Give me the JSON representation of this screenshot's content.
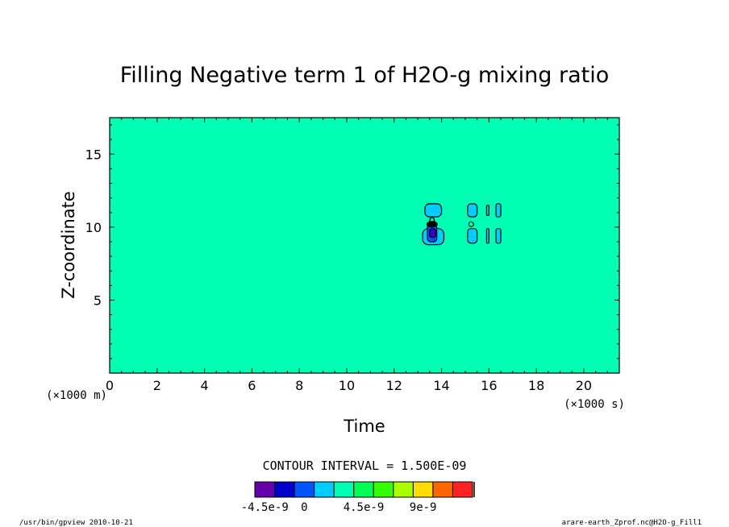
{
  "chart_data": {
    "type": "contour",
    "title": "Filling Negative term 1 of H2O-g mixing ratio",
    "xlabel": "Time",
    "ylabel": "Z-coordinate",
    "x_unit": "(×1000 s)",
    "y_unit": "(×1000 m)",
    "xlim": [
      0,
      21.5
    ],
    "ylim": [
      0,
      17.5
    ],
    "x_ticks": [
      "0",
      "2",
      "4",
      "6",
      "8",
      "10",
      "12",
      "14",
      "16",
      "18",
      "20"
    ],
    "x_tick_values": [
      0,
      2,
      4,
      6,
      8,
      10,
      12,
      14,
      16,
      18,
      20
    ],
    "y_ticks": [
      "5",
      "10",
      "15"
    ],
    "y_tick_values": [
      5,
      10,
      15
    ],
    "background_level_color": "#00ffb4",
    "features": [
      {
        "name": "upper-left-cell",
        "x": [
          13.3,
          14.0
        ],
        "y": [
          10.7,
          11.6
        ],
        "fill": "#00ccff"
      },
      {
        "name": "lower-left-cell",
        "x": [
          13.2,
          14.1
        ],
        "y": [
          8.8,
          9.9
        ],
        "fill": "#00ccff"
      },
      {
        "name": "core-low",
        "x": [
          13.4,
          13.8
        ],
        "y": [
          9.0,
          10.2
        ],
        "fill": "#0055ff"
      },
      {
        "name": "core-min",
        "x": [
          13.5,
          13.75
        ],
        "y": [
          9.3,
          9.9
        ],
        "fill": "#3300cc"
      },
      {
        "name": "upper-mid-cell",
        "x": [
          15.1,
          15.5
        ],
        "y": [
          10.7,
          11.6
        ],
        "fill": "#00ccff"
      },
      {
        "name": "lower-mid-cell",
        "x": [
          15.1,
          15.5
        ],
        "y": [
          8.9,
          9.9
        ],
        "fill": "#00ccff"
      },
      {
        "name": "upper-right-small",
        "x": [
          15.9,
          16.0
        ],
        "y": [
          10.8,
          11.5
        ],
        "fill": "#00ccff"
      },
      {
        "name": "upper-right-cell",
        "x": [
          16.3,
          16.5
        ],
        "y": [
          10.7,
          11.6
        ],
        "fill": "#00ccff"
      },
      {
        "name": "lower-right-small",
        "x": [
          15.9,
          16.0
        ],
        "y": [
          8.9,
          9.9
        ],
        "fill": "#00ccff"
      },
      {
        "name": "lower-right-cell",
        "x": [
          16.3,
          16.5
        ],
        "y": [
          8.9,
          9.9
        ],
        "fill": "#00ccff"
      }
    ],
    "contour_interval_text": "CONTOUR INTERVAL = 1.500E-09",
    "colorbar": {
      "colors": [
        "#6600aa",
        "#0000cc",
        "#0055ff",
        "#00ccff",
        "#00ffb4",
        "#00ff55",
        "#33ff00",
        "#aaff00",
        "#ffdd00",
        "#ff6600",
        "#ff2222"
      ],
      "labels": [
        "-4.5e-9",
        "0",
        "4.5e-9",
        "9e-9"
      ],
      "label_positions": [
        0,
        2,
        5,
        8
      ]
    }
  },
  "footer": {
    "left": "/usr/bin/gpview  2010-10-21",
    "right": "arare-earth_Zprof.nc@H2O-g_Fill1"
  }
}
